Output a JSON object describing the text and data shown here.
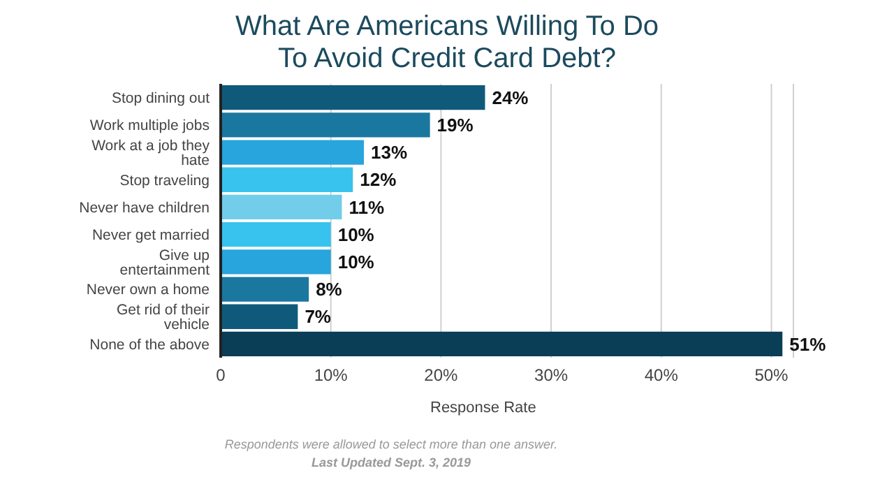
{
  "chart_data": {
    "type": "bar",
    "orientation": "horizontal",
    "title": "What Are Americans Willing To Do To Avoid Credit Card Debt?",
    "xlabel": "Response Rate",
    "categories": [
      "Stop dining out",
      "Work multiple jobs",
      "Work at a job they hate",
      "Stop traveling",
      "Never have children",
      "Never get married",
      "Give up entertainment",
      "Never own a home",
      "Get rid of their vehicle",
      "None of the above"
    ],
    "values": [
      24,
      19,
      13,
      12,
      11,
      10,
      10,
      8,
      7,
      51
    ],
    "value_labels": [
      "24%",
      "19%",
      "13%",
      "12%",
      "11%",
      "10%",
      "10%",
      "8%",
      "7%",
      "51%"
    ],
    "colors": [
      "#0f5a7a",
      "#1a77a0",
      "#27a5dc",
      "#38c3ee",
      "#72cdea",
      "#38c3ee",
      "#27a5dc",
      "#1a77a0",
      "#0f5a7a",
      "#0a3d56"
    ],
    "xlim": [
      0,
      52
    ],
    "xticks": [
      {
        "value": 0,
        "label": "0"
      },
      {
        "value": 10,
        "label": "10%"
      },
      {
        "value": 20,
        "label": "20%"
      },
      {
        "value": 30,
        "label": "30%"
      },
      {
        "value": 40,
        "label": "40%"
      },
      {
        "value": 50,
        "label": "50%"
      }
    ],
    "grid": "x",
    "legend": false,
    "annotations": [
      "Respondents were allowed to select more than one answer.",
      "Last Updated Sept. 3, 2019"
    ]
  }
}
